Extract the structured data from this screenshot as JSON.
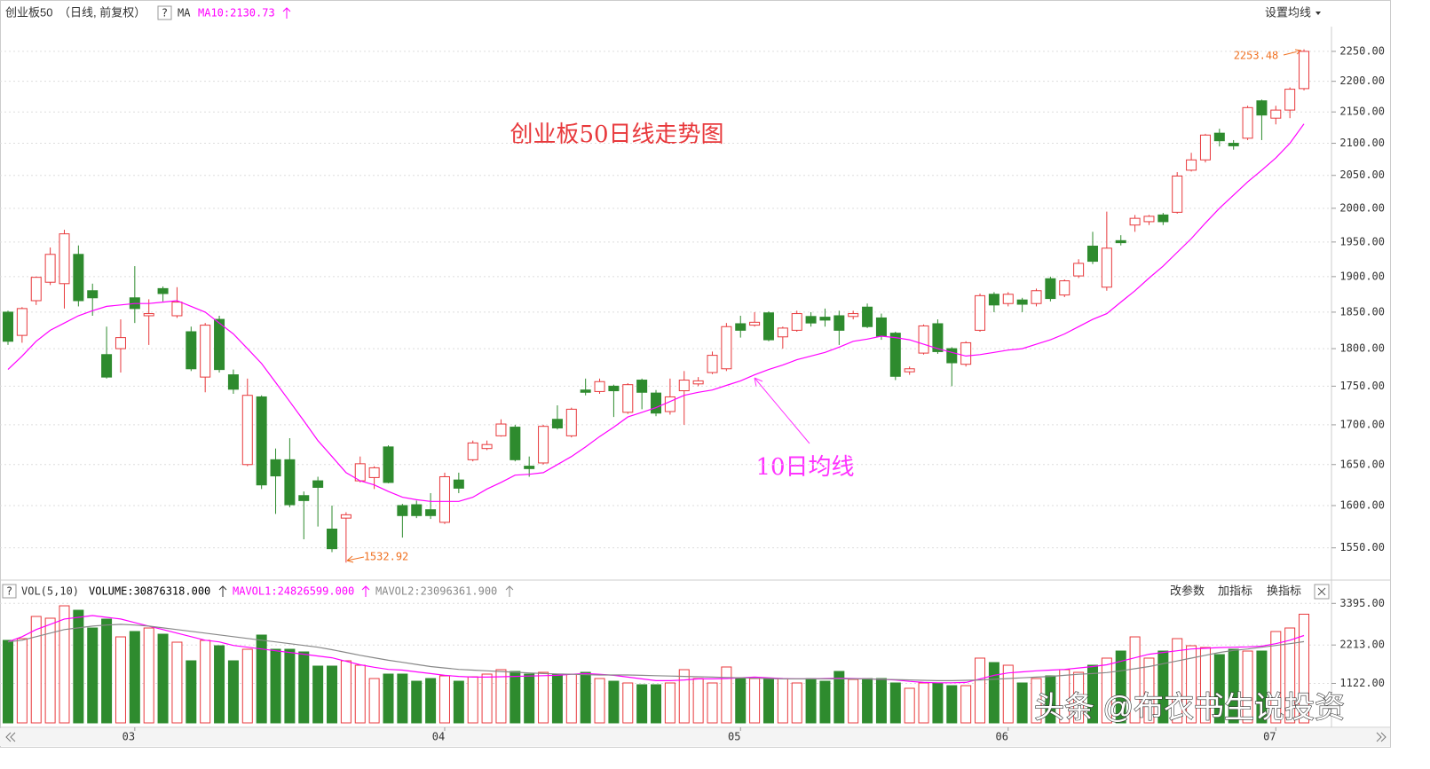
{
  "chart_data": [
    {
      "type": "candlestick",
      "title": "创业板50",
      "subtitle": "（日线, 前复权）",
      "indicator": "MA",
      "annotation": "创业板50日线走势图",
      "ma_annotation": "10日均线",
      "high_label": "2253.48",
      "low_label": "1532.92",
      "log_scale": true,
      "grid": true,
      "up_color": "#e8393c",
      "down_color": "#2e8b2e",
      "ylim": [
        1517,
        2277
      ],
      "yticks": [
        {
          "value": 1550,
          "label": "1550.00"
        },
        {
          "value": 1600,
          "label": "1600.00"
        },
        {
          "value": 1650,
          "label": "1650.00"
        },
        {
          "value": 1700,
          "label": "1700.00"
        },
        {
          "value": 1750,
          "label": "1750.00"
        },
        {
          "value": 1800,
          "label": "1800.00"
        },
        {
          "value": 1850,
          "label": "1850.00"
        },
        {
          "value": 1900,
          "label": "1900.00"
        },
        {
          "value": 1950,
          "label": "1950.00"
        },
        {
          "value": 2000,
          "label": "2000.00"
        },
        {
          "value": 2050,
          "label": "2050.00"
        },
        {
          "value": 2100,
          "label": "2100.00"
        },
        {
          "value": 2150,
          "label": "2150.00"
        },
        {
          "value": 2200,
          "label": "2200.00"
        },
        {
          "value": 2250,
          "label": "2250.00"
        }
      ],
      "open": [
        1850,
        1818,
        1866,
        1892,
        1890,
        1932,
        1880,
        1792,
        1800,
        1870,
        1845,
        1883,
        1845,
        1823,
        1762,
        1840,
        1765,
        1650,
        1736,
        1656,
        1656,
        1612,
        1630,
        1572,
        1585,
        1630,
        1634,
        1672,
        1600,
        1601,
        1595,
        1580,
        1631,
        1656,
        1670,
        1686,
        1697,
        1648,
        1652,
        1707,
        1686,
        1745,
        1743,
        1750,
        1716,
        1758,
        1741,
        1717,
        1744,
        1753,
        1768,
        1773,
        1834,
        1832,
        1849,
        1816,
        1825,
        1844,
        1843,
        1845,
        1844,
        1857,
        1842,
        1821,
        1769,
        1794,
        1834,
        1800,
        1779,
        1825,
        1875,
        1862,
        1867,
        1862,
        1897,
        1874,
        1901,
        1944,
        1885,
        1952,
        1975,
        1980,
        1990,
        1994,
        2058,
        2074,
        2116,
        2100,
        2108,
        2168,
        2140,
        2153,
        2188
      ],
      "high": [
        1852,
        1857,
        1900,
        1942,
        1968,
        1945,
        1890,
        1830,
        1840,
        1915,
        1868,
        1886,
        1885,
        1830,
        1835,
        1845,
        1772,
        1760,
        1738,
        1670,
        1683,
        1617,
        1635,
        1600,
        1592,
        1660,
        1648,
        1674,
        1602,
        1606,
        1615,
        1640,
        1640,
        1680,
        1680,
        1707,
        1700,
        1660,
        1700,
        1725,
        1722,
        1760,
        1760,
        1752,
        1754,
        1760,
        1745,
        1760,
        1770,
        1762,
        1796,
        1835,
        1845,
        1850,
        1851,
        1830,
        1852,
        1850,
        1855,
        1852,
        1852,
        1862,
        1848,
        1823,
        1776,
        1833,
        1840,
        1802,
        1810,
        1876,
        1878,
        1878,
        1870,
        1883,
        1900,
        1896,
        1925,
        1965,
        1995,
        1960,
        1990,
        1990,
        1993,
        2055,
        2085,
        2115,
        2123,
        2105,
        2160,
        2170,
        2160,
        2190,
        2253.48
      ],
      "low": [
        1805,
        1808,
        1860,
        1888,
        1855,
        1858,
        1845,
        1760,
        1768,
        1835,
        1805,
        1865,
        1842,
        1770,
        1742,
        1768,
        1740,
        1648,
        1620,
        1590,
        1598,
        1560,
        1575,
        1545,
        1532.92,
        1628,
        1620,
        1627,
        1562,
        1585,
        1584,
        1578,
        1615,
        1654,
        1668,
        1685,
        1654,
        1635,
        1650,
        1694,
        1684,
        1738,
        1740,
        1710,
        1714,
        1720,
        1711,
        1713,
        1700,
        1750,
        1766,
        1770,
        1815,
        1830,
        1810,
        1800,
        1823,
        1830,
        1830,
        1805,
        1840,
        1828,
        1812,
        1758,
        1765,
        1792,
        1793,
        1750,
        1776,
        1823,
        1850,
        1858,
        1850,
        1858,
        1865,
        1871,
        1898,
        1918,
        1880,
        1945,
        1965,
        1975,
        1975,
        1992,
        2056,
        2070,
        2095,
        2090,
        2105,
        2105,
        2130,
        2140,
        2185
      ],
      "close": [
        1810,
        1855,
        1899,
        1932,
        1962,
        1866,
        1870,
        1762,
        1815,
        1855,
        1848,
        1876,
        1864,
        1773,
        1832,
        1772,
        1746,
        1738,
        1625,
        1636,
        1601,
        1606,
        1622,
        1549,
        1589,
        1651,
        1646,
        1628,
        1588,
        1588,
        1588,
        1635,
        1621,
        1677,
        1675,
        1701,
        1656,
        1645,
        1698,
        1696,
        1720,
        1742,
        1756,
        1744,
        1752,
        1742,
        1715,
        1736,
        1758,
        1757,
        1791,
        1830,
        1825,
        1836,
        1812,
        1828,
        1848,
        1835,
        1839,
        1825,
        1848,
        1830,
        1817,
        1763,
        1773,
        1831,
        1796,
        1781,
        1808,
        1873,
        1860,
        1875,
        1861,
        1880,
        1869,
        1894,
        1919,
        1922,
        1941,
        1949,
        1985,
        1988,
        1980,
        2049,
        2074,
        2113,
        2104,
        2096,
        2157,
        2145,
        2153,
        2187,
        2250
      ],
      "ma": {
        "name": "MA",
        "label": "MA10:2130.73",
        "color": "#ff00ff",
        "values": [
          1772,
          1790,
          1810,
          1825,
          1835,
          1845,
          1852,
          1858,
          1860,
          1862,
          1862,
          1864,
          1866,
          1858,
          1850,
          1835,
          1820,
          1800,
          1780,
          1755,
          1730,
          1705,
          1680,
          1660,
          1640,
          1630,
          1625,
          1617,
          1610,
          1607,
          1605,
          1605,
          1605,
          1610,
          1620,
          1628,
          1637,
          1638,
          1640,
          1650,
          1660,
          1672,
          1685,
          1697,
          1710,
          1716,
          1722,
          1730,
          1738,
          1742,
          1745,
          1751,
          1757,
          1765,
          1772,
          1778,
          1785,
          1790,
          1795,
          1802,
          1810,
          1813,
          1817,
          1815,
          1812,
          1806,
          1800,
          1795,
          1790,
          1792,
          1795,
          1798,
          1800,
          1806,
          1812,
          1820,
          1830,
          1840,
          1848,
          1864,
          1880,
          1898,
          1915,
          1935,
          1955,
          1978,
          2000,
          2020,
          2040,
          2058,
          2077,
          2100,
          2130.73
        ]
      }
    },
    {
      "type": "bar",
      "title": "VOL(5,10)",
      "volume_label": "VOLUME:30876318.000",
      "ylim": [
        0,
        3503
      ],
      "yticks": [
        {
          "value": 1122,
          "label": "1122.00"
        },
        {
          "value": 2213,
          "label": "2213.00"
        },
        {
          "value": 3395,
          "label": "3395.00"
        }
      ],
      "categories": [
        null,
        null,
        null,
        null,
        null,
        null,
        null,
        null,
        null,
        "03",
        null,
        null,
        null,
        null,
        null,
        null,
        null,
        null,
        null,
        null,
        null,
        null,
        null,
        null,
        null,
        null,
        null,
        null,
        null,
        null,
        null,
        "04",
        null,
        null,
        null,
        null,
        null,
        null,
        null,
        null,
        null,
        null,
        null,
        null,
        null,
        null,
        null,
        null,
        null,
        null,
        null,
        null,
        "05",
        null,
        null,
        null,
        null,
        null,
        null,
        null,
        null,
        null,
        null,
        null,
        null,
        null,
        null,
        null,
        null,
        null,
        null,
        "06",
        null,
        null,
        null,
        null,
        null,
        null,
        null,
        null,
        null,
        null,
        null,
        null,
        null,
        null,
        null,
        null,
        null,
        null,
        "07",
        null,
        null
      ],
      "values": [
        2344,
        2394,
        3024,
        2974,
        3326,
        3200,
        2696,
        2948,
        2444,
        2596,
        2696,
        2520,
        2293,
        1764,
        2344,
        2192,
        1764,
        2092,
        2495,
        2092,
        2092,
        2016,
        1613,
        1613,
        1764,
        1638,
        1260,
        1386,
        1386,
        1184,
        1260,
        1336,
        1184,
        1310,
        1386,
        1512,
        1462,
        1386,
        1436,
        1386,
        1386,
        1436,
        1260,
        1184,
        1134,
        1084,
        1084,
        1134,
        1512,
        1260,
        1134,
        1588,
        1260,
        1260,
        1260,
        1260,
        1134,
        1260,
        1184,
        1462,
        1235,
        1260,
        1260,
        1134,
        983,
        1134,
        1134,
        1058,
        1058,
        1840,
        1714,
        1638,
        1134,
        1260,
        1336,
        1512,
        1436,
        1638,
        1840,
        2041,
        2444,
        1840,
        2041,
        2394,
        2192,
        2142,
        1940,
        2092,
        2041,
        2041,
        2596,
        2696,
        3087.6318
      ],
      "series": [
        {
          "name": "MAVOL1:24826599.000",
          "color": "#ff00ff",
          "values": [
            2300,
            2450,
            2650,
            2800,
            2950,
            3000,
            3050,
            3000,
            2950,
            2850,
            2750,
            2650,
            2550,
            2450,
            2350,
            2300,
            2200,
            2150,
            2100,
            2050,
            2000,
            1950,
            1900,
            1850,
            1750,
            1650,
            1580,
            1520,
            1500,
            1450,
            1400,
            1350,
            1320,
            1300,
            1300,
            1310,
            1320,
            1330,
            1340,
            1350,
            1380,
            1400,
            1380,
            1350,
            1300,
            1250,
            1200,
            1200,
            1220,
            1250,
            1250,
            1260,
            1280,
            1300,
            1280,
            1260,
            1250,
            1250,
            1260,
            1270,
            1260,
            1250,
            1240,
            1220,
            1180,
            1150,
            1140,
            1140,
            1150,
            1250,
            1350,
            1420,
            1450,
            1480,
            1500,
            1520,
            1560,
            1600,
            1650,
            1750,
            1850,
            1950,
            2000,
            2050,
            2100,
            2120,
            2140,
            2150,
            2160,
            2180,
            2250,
            2350,
            2482.66
          ]
        },
        {
          "name": "MAVOL2:23096361.900",
          "color": "#888888",
          "values": [
            2300,
            2350,
            2450,
            2550,
            2650,
            2700,
            2750,
            2780,
            2800,
            2780,
            2750,
            2700,
            2650,
            2600,
            2550,
            2500,
            2450,
            2400,
            2350,
            2300,
            2250,
            2200,
            2150,
            2080,
            2000,
            1920,
            1850,
            1780,
            1720,
            1660,
            1600,
            1560,
            1520,
            1500,
            1480,
            1460,
            1440,
            1420,
            1400,
            1390,
            1380,
            1370,
            1360,
            1360,
            1360,
            1350,
            1340,
            1330,
            1320,
            1310,
            1300,
            1290,
            1280,
            1270,
            1260,
            1250,
            1250,
            1250,
            1250,
            1250,
            1250,
            1250,
            1240,
            1230,
            1220,
            1210,
            1200,
            1200,
            1210,
            1220,
            1240,
            1260,
            1280,
            1300,
            1320,
            1350,
            1380,
            1400,
            1430,
            1480,
            1540,
            1600,
            1680,
            1760,
            1840,
            1920,
            2000,
            2060,
            2100,
            2150,
            2200,
            2250,
            2309.64
          ]
        }
      ]
    }
  ],
  "ui": {
    "help": "?",
    "ma_setting": "设置均线",
    "edit_params": "改参数",
    "add_indicator": "加指标",
    "switch_indicator": "换指标",
    "watermark": "头条 @布衣书生说投资"
  }
}
